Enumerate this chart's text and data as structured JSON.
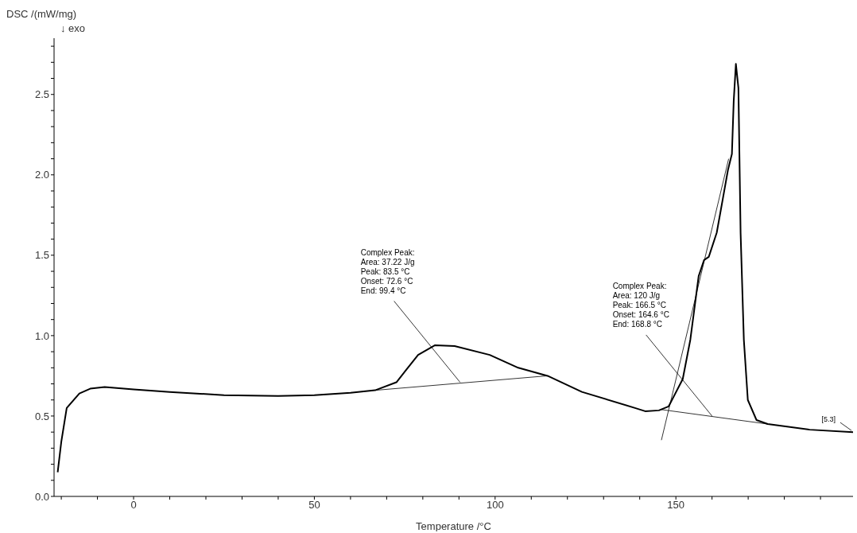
{
  "chart_data": {
    "type": "line",
    "xlabel": "Temperature /°C",
    "ylabel": "DSC /(mW/mg)",
    "xlim": [
      -22,
      199
    ],
    "ylim": [
      0,
      2.85
    ],
    "xticks": [
      {
        "value": -20,
        "label": null
      },
      {
        "value": -10,
        "label": null
      },
      0,
      {
        "value": 10,
        "label": null
      },
      {
        "value": 20,
        "label": null
      },
      {
        "value": 30,
        "label": null
      },
      {
        "value": 40,
        "label": null
      },
      50,
      {
        "value": 60,
        "label": null
      },
      {
        "value": 70,
        "label": null
      },
      {
        "value": 80,
        "label": null
      },
      {
        "value": 90,
        "label": null
      },
      100,
      {
        "value": 110,
        "label": null
      },
      {
        "value": 120,
        "label": null
      },
      {
        "value": 130,
        "label": null
      },
      {
        "value": 140,
        "label": null
      },
      150,
      {
        "value": 160,
        "label": null
      },
      {
        "value": 170,
        "label": null
      },
      {
        "value": 180,
        "label": null
      },
      {
        "value": 190,
        "label": null
      }
    ],
    "yticks": [
      {
        "value": 0,
        "label": "0.0"
      },
      {
        "value": 0.1,
        "label": null
      },
      {
        "value": 0.2,
        "label": null
      },
      {
        "value": 0.3,
        "label": null
      },
      {
        "value": 0.4,
        "label": null
      },
      {
        "value": 0.5,
        "label": "0.5"
      },
      {
        "value": 0.6,
        "label": null
      },
      {
        "value": 0.7,
        "label": null
      },
      {
        "value": 0.8,
        "label": null
      },
      {
        "value": 0.9,
        "label": null
      },
      {
        "value": 1,
        "label": "1.0"
      },
      {
        "value": 1.1,
        "label": null
      },
      {
        "value": 1.2,
        "label": null
      },
      {
        "value": 1.3,
        "label": null
      },
      {
        "value": 1.4,
        "label": null
      },
      {
        "value": 1.5,
        "label": "1.5"
      },
      {
        "value": 1.6,
        "label": null
      },
      {
        "value": 1.7,
        "label": null
      },
      {
        "value": 1.8,
        "label": null
      },
      {
        "value": 1.9,
        "label": null
      },
      {
        "value": 2,
        "label": "2.0"
      },
      {
        "value": 2.1,
        "label": null
      },
      {
        "value": 2.2,
        "label": null
      },
      {
        "value": 2.3,
        "label": null
      },
      {
        "value": 2.4,
        "label": null
      },
      {
        "value": 2.5,
        "label": "2.5"
      },
      {
        "value": 2.6,
        "label": null
      },
      {
        "value": 2.7,
        "label": null
      },
      {
        "value": 2.8,
        "label": null
      }
    ],
    "grid": false,
    "legend": false,
    "marker": "none",
    "line_style": "solid",
    "series": [
      {
        "color": "#000000",
        "x": [
          -21,
          -20,
          -18.5,
          -15,
          -12,
          -8,
          0,
          10,
          25,
          40,
          50,
          60,
          66.8,
          72.7,
          78.7,
          83.3,
          88.8,
          98.5,
          106.4,
          114.5,
          124,
          138.7,
          141.5,
          145.3,
          148,
          151.9,
          154,
          156.3,
          157.8,
          159.1,
          161.3,
          162.9,
          164.4,
          165.5,
          166,
          166.6,
          167.3,
          167.9,
          168.8,
          169.9,
          172.3,
          175.4,
          187,
          199
        ],
        "values": [
          0.15,
          0.34,
          0.55,
          0.64,
          0.67,
          0.68,
          0.665,
          0.65,
          0.63,
          0.625,
          0.63,
          0.645,
          0.66,
          0.71,
          0.88,
          0.94,
          0.935,
          0.88,
          0.8,
          0.75,
          0.65,
          0.55,
          0.53,
          0.535,
          0.56,
          0.73,
          0.975,
          1.37,
          1.47,
          1.49,
          1.64,
          1.84,
          2.03,
          2.13,
          2.46,
          2.69,
          2.54,
          1.64,
          0.975,
          0.6,
          0.475,
          0.45,
          0.415,
          0.4
        ]
      },
      {
        "color": "#000000",
        "x": [
          66.8,
          114.5
        ],
        "values": [
          0.66,
          0.75
        ]
      },
      {
        "color": "#000000",
        "x": [
          146,
          175.4
        ],
        "values": [
          0.54,
          0.45
        ]
      },
      {
        "color": "#000000",
        "x": [
          146,
          164.6
        ],
        "values": [
          0.35,
          2.1
        ]
      }
    ],
    "annotations": [
      "↓ exo",
      {
        "text": "Complex Peak:\nArea: 37.22 J/g\nPeak: 83.5 °C\nOnset: 72.6 °C\nEnd: 99.4 °C",
        "x": 90.3,
        "y": 0.71
      },
      {
        "text": "Complex Peak:\nArea: 120 J/g\nPeak: 166.5 °C\nOnset: 164.6 °C\nEnd: 168.8 °C",
        "x": 160,
        "y": 0.5
      },
      {
        "text": "[5.3]",
        "x": 199,
        "y": 0.4
      }
    ]
  }
}
